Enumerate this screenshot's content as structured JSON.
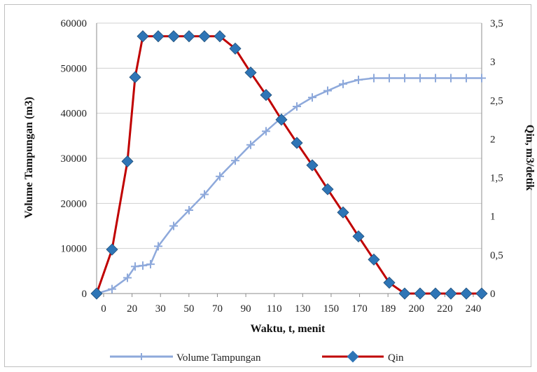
{
  "chart_data": {
    "type": "line",
    "title": "",
    "xlabel": "Waktu, t, menit",
    "ylabel_left": "Volume Tampungan (m3)",
    "ylabel_right": "Qin, m3/detik",
    "x_tick_labels": [
      "0",
      "20",
      "30",
      "50",
      "70",
      "90",
      "110",
      "130",
      "150",
      "170",
      "189",
      "200",
      "220",
      "240"
    ],
    "y_left_tick_labels": [
      "0",
      "10000",
      "20000",
      "30000",
      "40000",
      "50000",
      "60000"
    ],
    "y_right_tick_labels": [
      "0",
      "0,5",
      "1",
      "1,5",
      "2",
      "2,5",
      "3",
      "3,5"
    ],
    "ylim_left": [
      0,
      60000
    ],
    "ylim_right": [
      0,
      3.5
    ],
    "xlim": [
      0,
      250
    ],
    "grid": "horizontal",
    "legend_position": "bottom",
    "colors": {
      "volume": "#8EA9DB",
      "qin_line": "#C00000",
      "qin_marker": "#2E75B6"
    },
    "series": [
      {
        "name": "Volume Tampungan",
        "axis": "left",
        "x": [
          0,
          10,
          20,
          25,
          30,
          35,
          40,
          50,
          60,
          70,
          80,
          90,
          100,
          110,
          120,
          130,
          140,
          150,
          160,
          170,
          180,
          190,
          200,
          210,
          220,
          230,
          240,
          250
        ],
        "values": [
          0,
          1000,
          3500,
          6000,
          6200,
          6500,
          10500,
          15000,
          18500,
          22000,
          26000,
          29500,
          33000,
          36000,
          39000,
          41500,
          43500,
          45000,
          46500,
          47400,
          47800,
          47800,
          47800,
          47800,
          47800,
          47800,
          47800,
          47800
        ]
      },
      {
        "name": "Qin",
        "axis": "right",
        "x": [
          0,
          10,
          20,
          25,
          30,
          40,
          50,
          60,
          70,
          80,
          90,
          100,
          110,
          120,
          130,
          140,
          150,
          160,
          170,
          180,
          190,
          200,
          210,
          220,
          230,
          240,
          250
        ],
        "values": [
          0,
          0.57,
          1.71,
          2.8,
          3.33,
          3.33,
          3.33,
          3.33,
          3.33,
          3.33,
          3.17,
          2.86,
          2.57,
          2.25,
          1.95,
          1.66,
          1.35,
          1.05,
          0.74,
          0.44,
          0.14,
          0,
          0,
          0,
          0,
          0,
          0
        ]
      }
    ]
  }
}
